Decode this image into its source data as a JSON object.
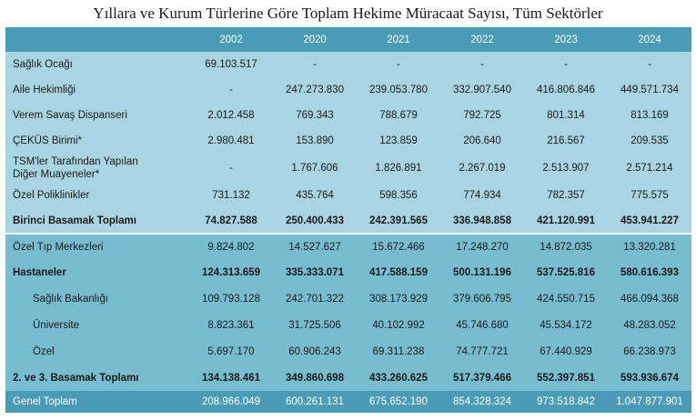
{
  "title": "Yıllara ve Kurum Türlerine Göre Toplam Hekime Müracaat Sayısı, Tüm Sektörler",
  "headers": [
    "",
    "2002",
    "2020",
    "2021",
    "2022",
    "2023",
    "2024"
  ],
  "rows": [
    {
      "label": "Sağlık Ocağı",
      "values": [
        "69.103.517",
        "-",
        "-",
        "-",
        "-",
        "-"
      ]
    },
    {
      "label": "Aile Hekimliği",
      "values": [
        "-",
        "247.273.830",
        "239.053.780",
        "332.907.540",
        "416.806.846",
        "449.571.734"
      ]
    },
    {
      "label": "Verem Savaş Dispanseri",
      "values": [
        "2.012.458",
        "769.343",
        "788.679",
        "792.725",
        "801.314",
        "813.169"
      ]
    },
    {
      "label": "ÇEKÜS Birimi*",
      "values": [
        "2.980.481",
        "153.890",
        "123.859",
        "206.640",
        "216.567",
        "209.535"
      ]
    },
    {
      "label_line1": "TSM'ler Tarafından Yapılan",
      "label_line2": "Diğer Muayeneler*",
      "values": [
        "-",
        "1.767.606",
        "1.826.891",
        "2.267.019",
        "2.513.907",
        "2.571.214"
      ]
    },
    {
      "label": "Özel Poliklinikler",
      "values": [
        "731.132",
        "435.764",
        "598.356",
        "774.934",
        "782.357",
        "775.575"
      ]
    },
    {
      "label": "Birinci Basamak Toplamı",
      "values": [
        "74.827.588",
        "250.400.433",
        "242.391.565",
        "336.948.858",
        "421.120.991",
        "453.941.227"
      ]
    },
    {
      "label": "Özel Tıp Merkezleri",
      "values": [
        "9.824.802",
        "14.527.627",
        "15.672.466",
        "17.248.270",
        "14.872.035",
        "13.320.281"
      ]
    },
    {
      "label": "Hastaneler",
      "values": [
        "124.313.659",
        "335.333.071",
        "417.588.159",
        "500.131.196",
        "537.525.816",
        "580.616.393"
      ]
    },
    {
      "label": "Sağlık Bakanlığı",
      "values": [
        "109.793.128",
        "242.701.322",
        "308.173.929",
        "379.606.795",
        "424.550.715",
        "466.094.368"
      ]
    },
    {
      "label": "Üniversite",
      "values": [
        "8.823.361",
        "31.725.506",
        "40.102.992",
        "45.746.680",
        "45.534.172",
        "48.283.052"
      ]
    },
    {
      "label": "Özel",
      "values": [
        "5.697.170",
        "60.906.243",
        "69.311.238",
        "74.777.721",
        "67.440.929",
        "66.238.973"
      ]
    },
    {
      "label": "2. ve 3. Basamak Toplamı",
      "values": [
        "134.138.461",
        "349.860.698",
        "433.260.625",
        "517.379.466",
        "552.397.851",
        "593.936.674"
      ]
    },
    {
      "label": "Genel Toplam",
      "values": [
        "208.966.049",
        "600.261.131",
        "675.652.190",
        "854.328.324",
        "973.518.842",
        "1.047.877.901"
      ]
    }
  ]
}
